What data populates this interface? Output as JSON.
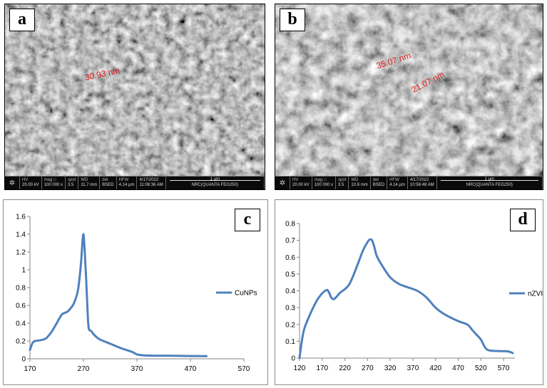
{
  "panels": {
    "a": {
      "letter": "a",
      "measurements": [
        "30.93 nm"
      ],
      "info": {
        "hv_label": "HV",
        "hv": "20.00 kV",
        "mag_label": "mag □",
        "mag": "100 000 x",
        "spot_label": "spot",
        "spot": "3.5",
        "wd_label": "WD",
        "wd": "11.7 mm",
        "det_label": "det",
        "det": "BSED",
        "hfw_label": "HFW",
        "hfw": "4.14 µm",
        "date": "4/17/2022",
        "time": "11:08:36 AM",
        "scale": "1 µm",
        "instrument": "NRC(QUANTA FEG250)"
      }
    },
    "b": {
      "letter": "b",
      "measurements": [
        "35.07 nm",
        "21.07 nm"
      ],
      "info": {
        "hv_label": "HV",
        "hv": "20.00 kV",
        "mag_label": "mag □",
        "mag": "100 000 x",
        "spot_label": "spot",
        "spot": "3.5",
        "wd_label": "WD",
        "wd": "10.6 mm",
        "det_label": "det",
        "det": "BSED",
        "hfw_label": "HFW",
        "hfw": "4.14 µm",
        "date": "4/17/2022",
        "time": "10:56:48 AM",
        "scale": "1 µm",
        "instrument": "NRC(QUANTA FEG250)"
      }
    },
    "c": {
      "letter": "c"
    },
    "d": {
      "letter": "d"
    }
  },
  "colors": {
    "series": "#4f81bd",
    "measure_text": "#e02020",
    "panel_border": "#8c8c8c"
  },
  "chart_data": [
    {
      "type": "line",
      "title": "",
      "xlabel": "",
      "ylabel": "",
      "xlim": [
        170,
        570
      ],
      "ylim": [
        0,
        1.6
      ],
      "x_ticks": [
        170,
        270,
        370,
        470,
        570
      ],
      "y_ticks": [
        0,
        0.2,
        0.4,
        0.6,
        0.8,
        1,
        1.2,
        1.4,
        1.6
      ],
      "y_tick_labels": [
        "0",
        "0.2",
        "0.4",
        "0.6",
        "0.8",
        "1",
        "1.2",
        "1.4",
        "1.6"
      ],
      "grid": false,
      "legend_position": "right",
      "series": [
        {
          "name": "CuNPs",
          "x": [
            170,
            175,
            180,
            190,
            200,
            210,
            220,
            230,
            240,
            250,
            255,
            260,
            265,
            268,
            270,
            272,
            275,
            278,
            280,
            285,
            290,
            300,
            320,
            340,
            360,
            370,
            380,
            400,
            430,
            460,
            500
          ],
          "y": [
            0.1,
            0.18,
            0.2,
            0.21,
            0.23,
            0.3,
            0.4,
            0.5,
            0.53,
            0.6,
            0.67,
            0.78,
            1.05,
            1.3,
            1.4,
            1.25,
            0.9,
            0.5,
            0.34,
            0.31,
            0.27,
            0.22,
            0.17,
            0.12,
            0.08,
            0.05,
            0.04,
            0.035,
            0.035,
            0.032,
            0.03
          ]
        }
      ]
    },
    {
      "type": "line",
      "title": "",
      "xlabel": "",
      "ylabel": "",
      "xlim": [
        120,
        595
      ],
      "ylim": [
        0,
        0.8
      ],
      "x_ticks": [
        120,
        170,
        220,
        270,
        320,
        370,
        420,
        470,
        520,
        570
      ],
      "y_ticks": [
        0,
        0.1,
        0.2,
        0.3,
        0.4,
        0.5,
        0.6,
        0.7,
        0.8
      ],
      "y_tick_labels": [
        "0",
        "0.1",
        "0.2",
        "0.3",
        "0.4",
        "0.5",
        "0.6",
        "0.7",
        "0.8"
      ],
      "grid": false,
      "legend_position": "right",
      "series": [
        {
          "name": "nZVI",
          "x": [
            120,
            125,
            130,
            140,
            150,
            160,
            170,
            180,
            185,
            190,
            195,
            200,
            210,
            220,
            230,
            240,
            250,
            260,
            270,
            275,
            280,
            285,
            290,
            300,
            320,
            340,
            360,
            380,
            400,
            420,
            440,
            470,
            490,
            500,
            510,
            520,
            530,
            540,
            560,
            580,
            590
          ],
          "y": [
            0,
            0.1,
            0.17,
            0.24,
            0.3,
            0.35,
            0.385,
            0.405,
            0.39,
            0.36,
            0.35,
            0.36,
            0.39,
            0.41,
            0.44,
            0.5,
            0.57,
            0.64,
            0.69,
            0.705,
            0.7,
            0.66,
            0.61,
            0.56,
            0.48,
            0.44,
            0.42,
            0.4,
            0.36,
            0.3,
            0.26,
            0.22,
            0.2,
            0.17,
            0.14,
            0.11,
            0.06,
            0.045,
            0.042,
            0.04,
            0.03
          ]
        }
      ]
    }
  ]
}
